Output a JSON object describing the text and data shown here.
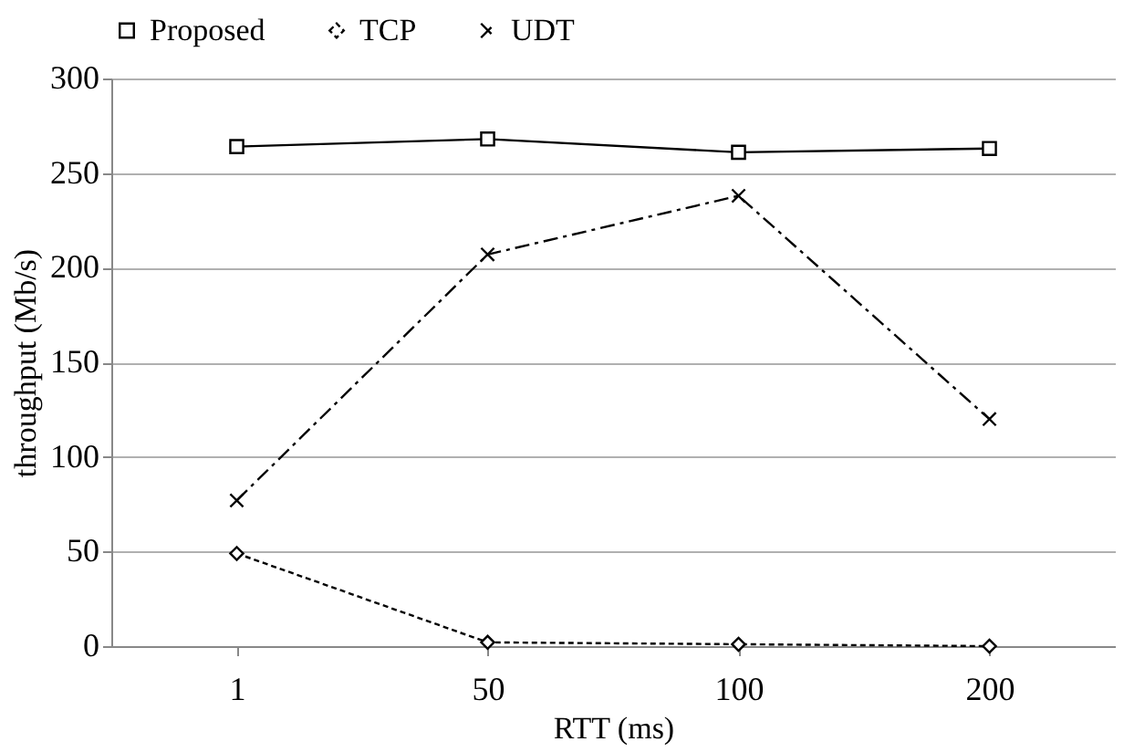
{
  "chart_data": {
    "type": "line",
    "xlabel": "RTT (ms)",
    "ylabel": "throughput  (Mb/s)",
    "categories": [
      "1",
      "50",
      "100",
      "200"
    ],
    "ylim": [
      0,
      300
    ],
    "yticks": [
      0,
      50,
      100,
      150,
      200,
      250,
      300
    ],
    "grid": "y",
    "legend": "top",
    "series": [
      {
        "name": "Proposed",
        "color": "#000000",
        "marker": "square",
        "line_style": "solid",
        "values": [
          264,
          268,
          261,
          263
        ]
      },
      {
        "name": "TCP",
        "color": "#000000",
        "marker": "diamond",
        "line_style": "dotted",
        "values": [
          49,
          2,
          1,
          0
        ]
      },
      {
        "name": "UDT",
        "color": "#000000",
        "marker": "cross",
        "line_style": "dashed",
        "values": [
          77,
          207,
          238,
          120
        ]
      }
    ]
  }
}
